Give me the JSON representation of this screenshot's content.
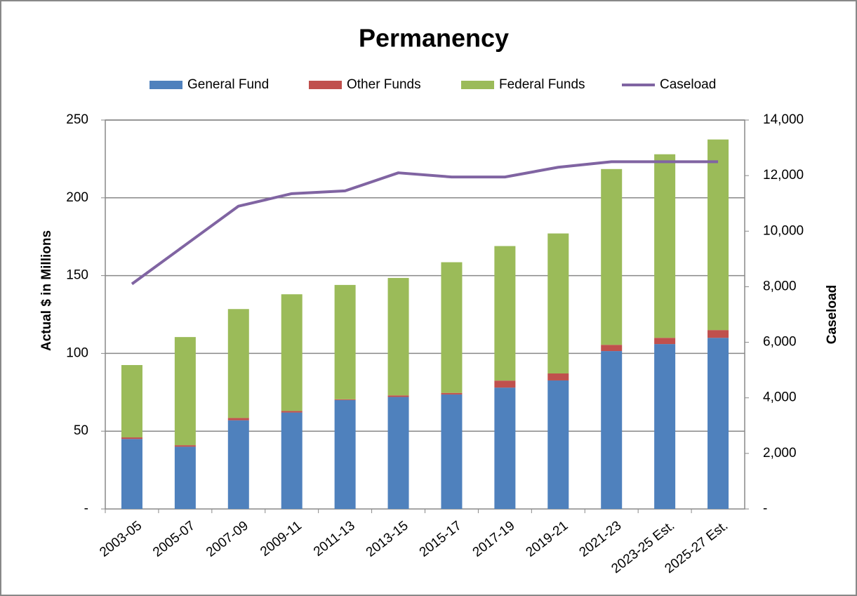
{
  "chart_data": {
    "type": "bar",
    "stacked": true,
    "title": "Permanency",
    "y_label": "Actual $ in Millions",
    "y2_label": "Caseload",
    "categories": [
      "2003-05",
      "2005-07",
      "2007-09",
      "2009-11",
      "2011-13",
      "2013-15",
      "2015-17",
      "2017-19",
      "2019-21",
      "2021-23",
      "2023-25 Est.",
      "2025-27 Est."
    ],
    "series": [
      {
        "name": "General Fund",
        "color": "#4f81bd",
        "values": [
          45,
          40,
          57,
          62,
          70,
          72,
          73.6,
          78,
          82.6,
          101.5,
          106,
          110
        ]
      },
      {
        "name": "Other Funds",
        "color": "#c0504d",
        "values": [
          1,
          1,
          1.5,
          1,
          0.5,
          1,
          1,
          4.5,
          4.5,
          4,
          4,
          5
        ]
      },
      {
        "name": "Federal Funds",
        "color": "#9bbb59",
        "values": [
          46.5,
          69.5,
          70,
          75,
          73.5,
          75.5,
          84,
          86.5,
          90,
          113,
          118,
          122.5
        ]
      },
      {
        "name": "Caseload",
        "color": "#8064a2",
        "type": "line",
        "axis": "y2",
        "values": [
          8100,
          9500,
          10900,
          11350,
          11450,
          12100,
          11950,
          11950,
          12300,
          12500,
          12500,
          12500
        ]
      }
    ],
    "ylim": [
      0,
      250
    ],
    "yticks": [
      {
        "value": 0,
        "label": "-"
      },
      50,
      100,
      150,
      200,
      250
    ],
    "y2lim": [
      0,
      14000
    ],
    "y2ticks": [
      {
        "value": 0,
        "label": "-"
      },
      {
        "value": 2000,
        "label": "2,000"
      },
      {
        "value": 4000,
        "label": "4,000"
      },
      {
        "value": 6000,
        "label": "6,000"
      },
      {
        "value": 8000,
        "label": "8,000"
      },
      {
        "value": 10000,
        "label": "10,000"
      },
      {
        "value": 12000,
        "label": "12,000"
      },
      {
        "value": 14000,
        "label": "14,000"
      }
    ],
    "grid": true,
    "legend": "top"
  }
}
